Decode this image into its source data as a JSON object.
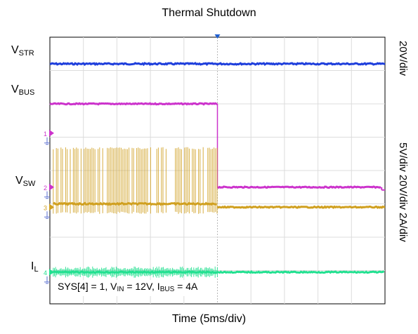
{
  "chart_data": {
    "type": "line",
    "title": "Thermal Shutdown",
    "xlabel": "Time (5ms/div)",
    "x_divisions": 10,
    "y_divisions": 8,
    "trigger_position_div": 5,
    "series": [
      {
        "name": "V_STR",
        "color": "#1f3fdc",
        "scale": "20V/div",
        "levels_div": [
          {
            "from": 0,
            "to": 10,
            "y": 7.2
          }
        ]
      },
      {
        "name": "V_BUS",
        "color": "#cc33cc",
        "scale": "5V/div",
        "levels_div": [
          {
            "from": 0,
            "to": 5,
            "y": 6.0
          },
          {
            "from": 5,
            "to": 10,
            "y": 3.5
          }
        ]
      },
      {
        "name": "V_SW",
        "color": "#d0a020",
        "scale": "20V/div",
        "levels_div": [
          {
            "from": 0,
            "to": 5,
            "y": 3.0,
            "switching_to": 4.7,
            "switching_from": 2.7
          },
          {
            "from": 5,
            "to": 10,
            "y": 2.9
          }
        ]
      },
      {
        "name": "I_L",
        "color": "#22e090",
        "scale": "2A/div",
        "levels_div": [
          {
            "from": 0,
            "to": 10,
            "y": 0.95
          }
        ]
      }
    ],
    "scale_labels": {
      "top": "20V/div",
      "mid": "5V/div 20V/div 2A/div"
    },
    "channel_labels": {
      "v_str": {
        "main": "V",
        "sub": "STR"
      },
      "v_bus": {
        "main": "V",
        "sub": "BUS"
      },
      "v_sw": {
        "main": "V",
        "sub": "SW"
      },
      "i_l": {
        "main": "I",
        "sub": "L"
      }
    },
    "marker_labels": [
      "1",
      "2",
      "3",
      "4"
    ],
    "annotation": {
      "p1": "SYS[4] = 1, V",
      "s1": "IN",
      "p2": " = 12V, I",
      "s2": "BUS",
      "p3": " = 4A"
    },
    "grid": true
  }
}
